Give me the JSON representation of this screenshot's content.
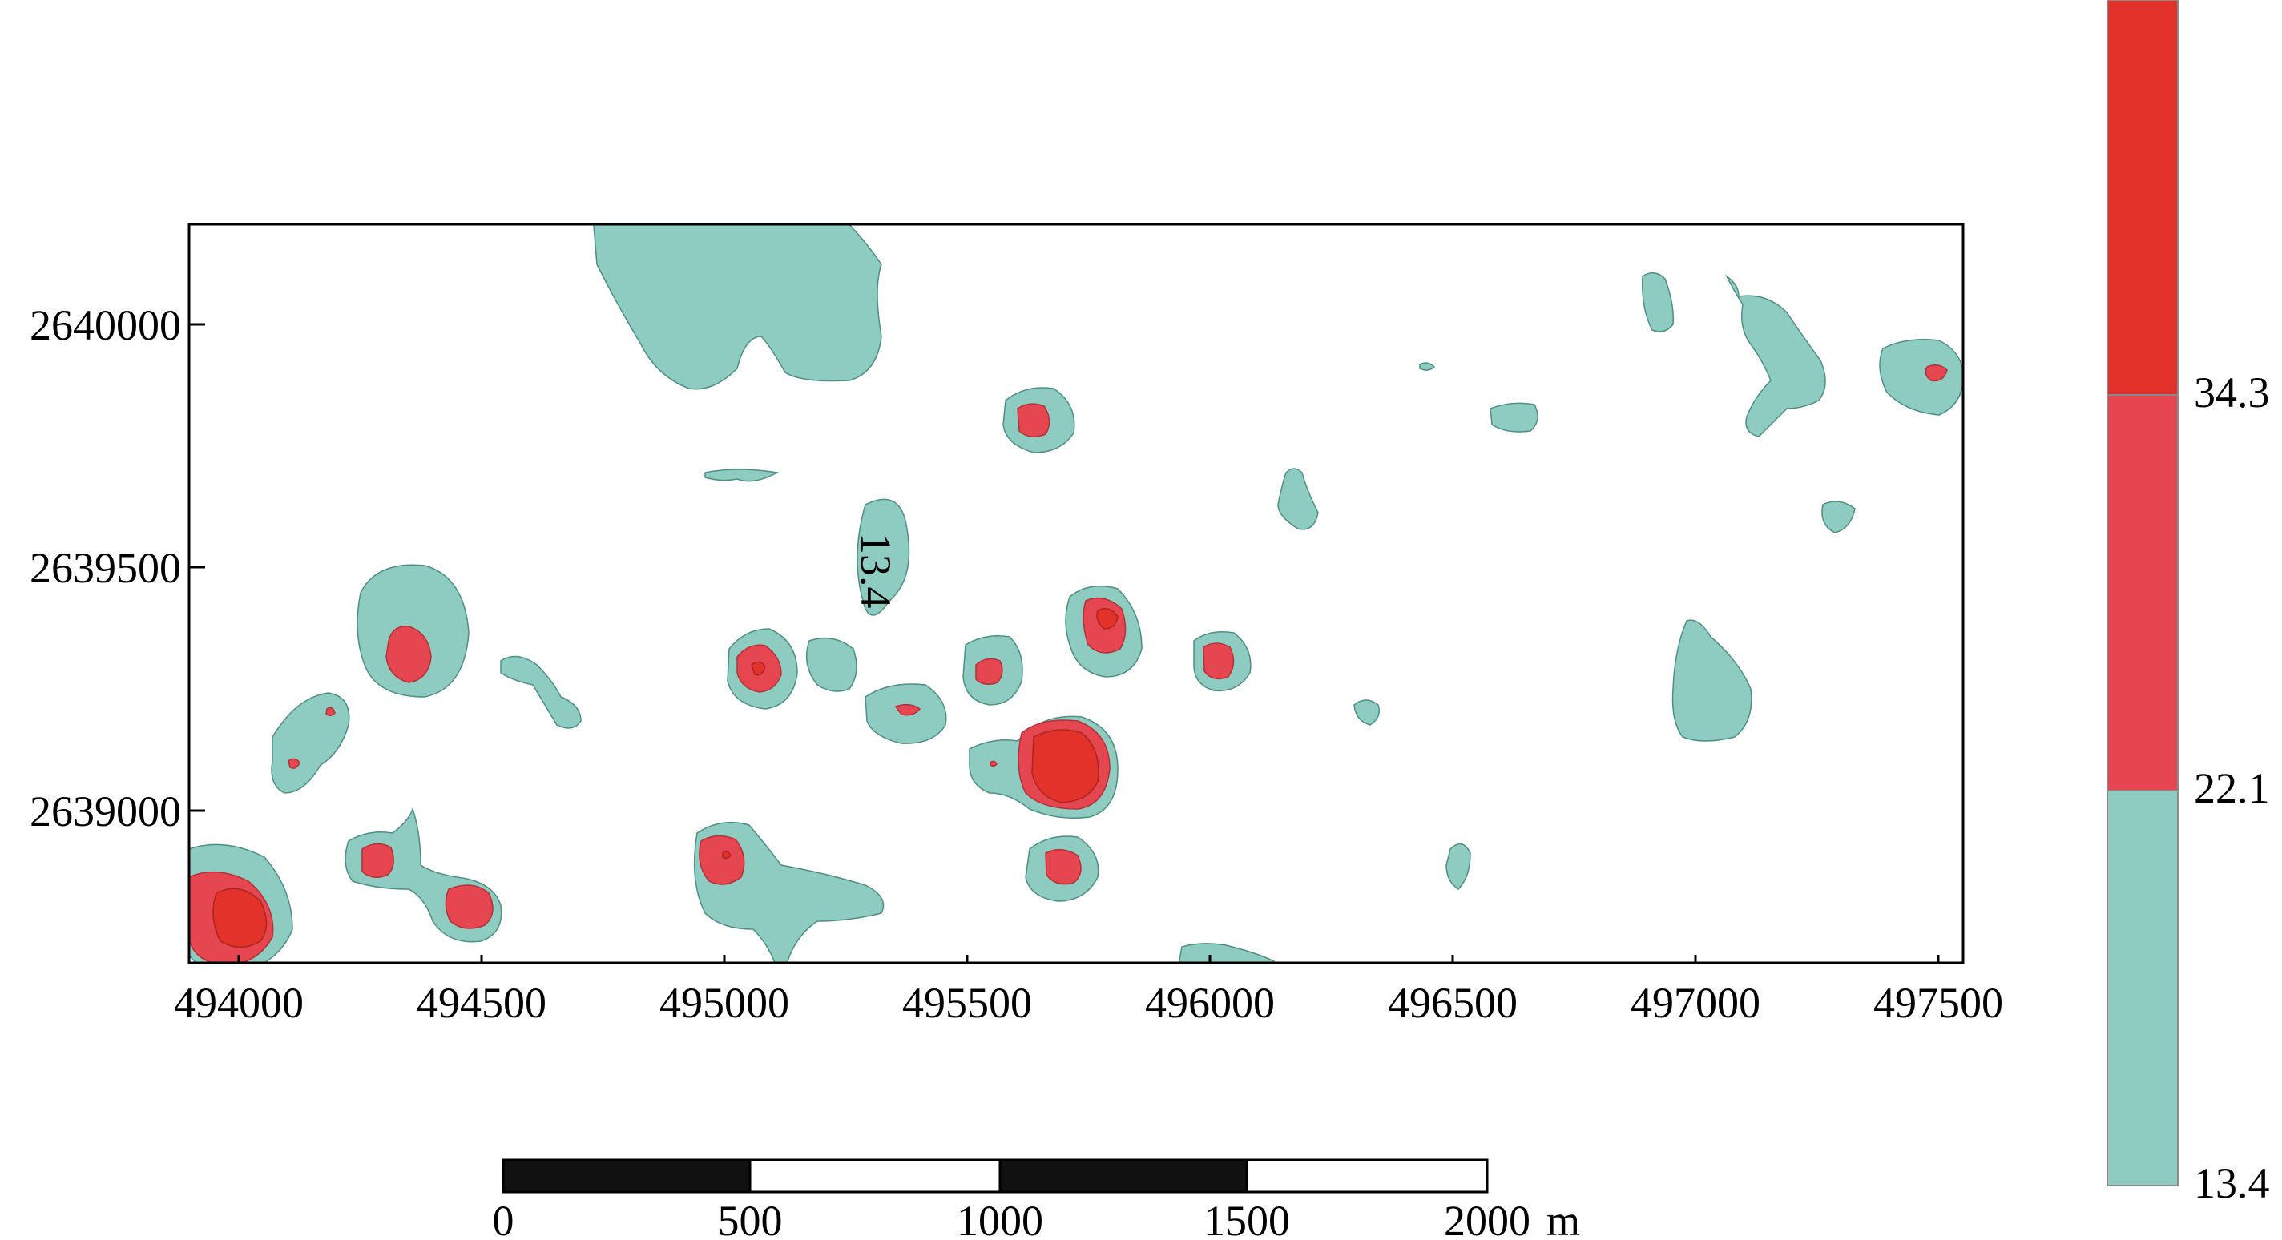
{
  "map": {
    "contour_label": "13.4",
    "x_ticks": [
      "494000",
      "494500",
      "495000",
      "495500",
      "496000",
      "496500",
      "497000",
      "497500"
    ],
    "y_ticks": [
      "2640000",
      "2639500",
      "2639000"
    ],
    "x_range": [
      493900,
      497560
    ],
    "y_range": [
      2638690,
      2640200
    ]
  },
  "scale_bar": {
    "labels": [
      "0",
      "500",
      "1000",
      "1500",
      "2000"
    ],
    "unit": "m"
  },
  "legend": {
    "labels": [
      "34.3",
      "22.1",
      "13.4"
    ],
    "colors": {
      "low": "#8ecbc0",
      "mid": "#e6464f",
      "high": "#e3322a"
    }
  }
}
